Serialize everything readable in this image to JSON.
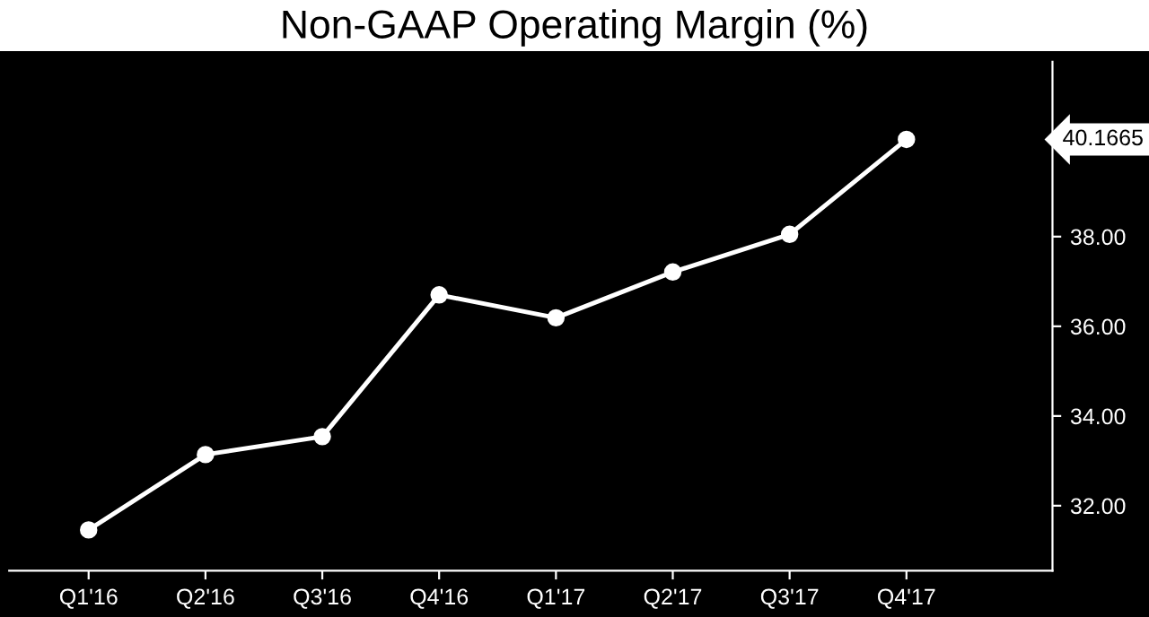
{
  "chart_data": {
    "type": "line",
    "title": "Non-GAAP Operating Margin (%)",
    "categories": [
      "Q1'16",
      "Q2'16",
      "Q3'16",
      "Q4'16",
      "Q1'17",
      "Q2'17",
      "Q3'17",
      "Q4'17"
    ],
    "series": [
      {
        "color": "#ffffff",
        "values": [
          31.46,
          33.14,
          33.54,
          36.7,
          36.19,
          37.21,
          38.05,
          40.1665
        ]
      }
    ],
    "annotations": [
      "40.1665"
    ],
    "ylim": [
      30.55,
      41.9
    ],
    "yticks": [
      {
        "value": 32,
        "label": "32.00"
      },
      {
        "value": 34,
        "label": "34.00"
      },
      {
        "value": 36,
        "label": "36.00"
      },
      {
        "value": 38,
        "label": "38.00"
      },
      {
        "value": 40,
        "label": null
      }
    ],
    "marker": "circle",
    "line_style": "solid",
    "grid": false,
    "legend": false
  }
}
